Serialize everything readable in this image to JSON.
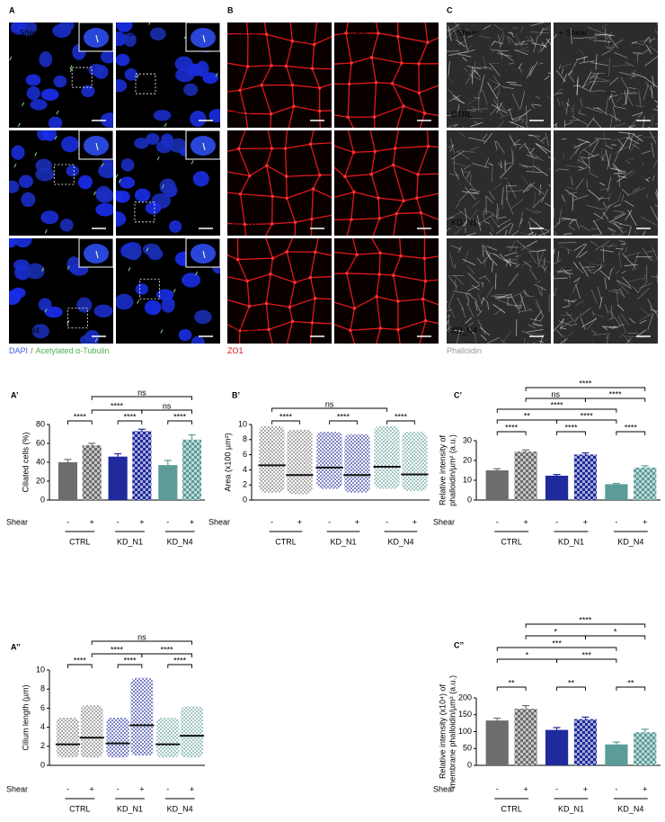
{
  "image_panels": [
    {
      "letter": "A",
      "columns": [
        "- Shear",
        "+ Shear"
      ],
      "rows": [
        "CTRL",
        "KD_N1",
        "KD_N4"
      ],
      "style": "nuclei",
      "caption": [
        {
          "text": "DAPI",
          "color": "#3d5ee0"
        },
        {
          "text": "/",
          "color": "#666666"
        },
        {
          "text": "Acetylated α-Tubulin",
          "color": "#4caf50"
        }
      ]
    },
    {
      "letter": "B",
      "columns": [
        "- Shear",
        "+ Shear"
      ],
      "rows": [
        "CTRL",
        "KD_N1",
        "KD_N4"
      ],
      "style": "junctions",
      "caption": [
        {
          "text": "ZO1",
          "color": "#d01818"
        }
      ]
    },
    {
      "letter": "C",
      "columns": [
        "- Shear",
        "+ Shear"
      ],
      "rows": [
        "CTRL",
        "KD_N1",
        "KD_N4"
      ],
      "style": "actin",
      "caption": [
        {
          "text": "Phalloidin",
          "color": "#999999"
        }
      ]
    }
  ],
  "chart_data": [
    {
      "type": "bar",
      "title": "A’",
      "ylabel": [
        "Ciliated cells (%)"
      ],
      "row_label": "Shear",
      "categories": [
        "CTRL",
        "KD_N1",
        "KD_N4"
      ],
      "colors": [
        "#6d6d6d",
        "#1f2a9c",
        "#5b9c98"
      ],
      "series": [
        {
          "name": "-",
          "values": [
            40,
            46,
            37
          ],
          "errors": [
            3,
            3,
            5
          ]
        },
        {
          "name": "+",
          "values": [
            58,
            73,
            64
          ],
          "errors": [
            2,
            2,
            5
          ]
        }
      ],
      "ylim": [
        0,
        80
      ],
      "yticks": [
        0,
        20,
        40,
        60,
        80
      ],
      "significance": [
        {
          "pair": [
            0,
            1
          ],
          "label": "****"
        },
        {
          "pair": [
            2,
            3
          ],
          "label": "****"
        },
        {
          "pair": [
            4,
            5
          ],
          "label": "****"
        },
        {
          "pair": [
            1,
            3
          ],
          "label": "****"
        },
        {
          "pair": [
            3,
            5
          ],
          "label": "ns"
        },
        {
          "pair": [
            1,
            5
          ],
          "label": "ns"
        }
      ]
    },
    {
      "type": "dot",
      "title": "B’",
      "ylabel": [
        "Area (x100 µm²)"
      ],
      "row_label": "Shear",
      "categories": [
        "CTRL",
        "KD_N1",
        "KD_N4"
      ],
      "colors": [
        "#6d6d6d",
        "#1f2a9c",
        "#5b9c98"
      ],
      "series": [
        {
          "name": "-",
          "values": [
            4.6,
            4.3,
            4.4
          ],
          "min": [
            1,
            1.5,
            1.5
          ],
          "max": [
            9.8,
            9,
            9.8
          ]
        },
        {
          "name": "+",
          "values": [
            3.3,
            3.3,
            3.4
          ],
          "min": [
            0.8,
            1,
            1.2
          ],
          "max": [
            9.3,
            8.7,
            9
          ]
        }
      ],
      "ylim": [
        0,
        10
      ],
      "yticks": [
        0,
        2,
        4,
        6,
        8,
        10
      ],
      "significance": [
        {
          "pair": [
            0,
            1
          ],
          "label": "****"
        },
        {
          "pair": [
            2,
            3
          ],
          "label": "****"
        },
        {
          "pair": [
            4,
            5
          ],
          "label": "****"
        },
        {
          "pair": [
            0,
            4
          ],
          "label": "ns"
        }
      ]
    },
    {
      "type": "bar",
      "title": "C’",
      "ylabel": [
        "Relative intensity of",
        "phalloidin/µm² (a.u.)"
      ],
      "row_label": "Shear",
      "categories": [
        "CTRL",
        "KD_N1",
        "KD_N4"
      ],
      "colors": [
        "#6d6d6d",
        "#1f2a9c",
        "#5b9c98"
      ],
      "series": [
        {
          "name": "-",
          "values": [
            15,
            12.3,
            8
          ],
          "errors": [
            0.8,
            0.6,
            0.4
          ]
        },
        {
          "name": "+",
          "values": [
            24.5,
            23,
            16.4
          ],
          "errors": [
            0.8,
            0.8,
            0.9
          ]
        }
      ],
      "ylim": [
        0,
        30
      ],
      "yticks": [
        0,
        10,
        20,
        30
      ],
      "significance": [
        {
          "pair": [
            0,
            1
          ],
          "label": "****"
        },
        {
          "pair": [
            2,
            3
          ],
          "label": "****"
        },
        {
          "pair": [
            4,
            5
          ],
          "label": "****"
        },
        {
          "pair": [
            0,
            2
          ],
          "label": "**"
        },
        {
          "pair": [
            2,
            4
          ],
          "label": "****"
        },
        {
          "pair": [
            0,
            4
          ],
          "label": "****"
        },
        {
          "pair": [
            1,
            3
          ],
          "label": "ns"
        },
        {
          "pair": [
            3,
            5
          ],
          "label": "****"
        },
        {
          "pair": [
            1,
            5
          ],
          "label": "****"
        }
      ]
    },
    {
      "type": "dot",
      "title": "A’’",
      "ylabel": [
        "Cilium length (µm)"
      ],
      "row_label": "Shear",
      "categories": [
        "CTRL",
        "KD_N1",
        "KD_N4"
      ],
      "colors": [
        "#6d6d6d",
        "#1f2a9c",
        "#5b9c98"
      ],
      "series": [
        {
          "name": "-",
          "values": [
            2.2,
            2.3,
            2.2
          ],
          "min": [
            0.8,
            0.8,
            0.8
          ],
          "max": [
            5,
            5,
            5
          ]
        },
        {
          "name": "+",
          "values": [
            2.9,
            4.2,
            3.1
          ],
          "min": [
            0.8,
            1,
            0.8
          ],
          "max": [
            6.3,
            9.2,
            6.2
          ]
        }
      ],
      "ylim": [
        0,
        10
      ],
      "yticks": [
        0,
        2,
        4,
        6,
        8,
        10
      ],
      "significance": [
        {
          "pair": [
            0,
            1
          ],
          "label": "****"
        },
        {
          "pair": [
            2,
            3
          ],
          "label": "****"
        },
        {
          "pair": [
            4,
            5
          ],
          "label": "****"
        },
        {
          "pair": [
            1,
            3
          ],
          "label": "****"
        },
        {
          "pair": [
            3,
            5
          ],
          "label": "****"
        },
        {
          "pair": [
            1,
            5
          ],
          "label": "ns"
        }
      ]
    },
    {
      "type": "bar",
      "title": "C’’",
      "ylabel": [
        "Relative intensity (x10⁴) of",
        "membrane phalloidin/µm² (a.u.)"
      ],
      "row_label": "Shear",
      "categories": [
        "CTRL",
        "KD_N1",
        "KD_N4"
      ],
      "colors": [
        "#6d6d6d",
        "#1f2a9c",
        "#5b9c98"
      ],
      "series": [
        {
          "name": "-",
          "values": [
            133,
            105,
            62
          ],
          "errors": [
            7,
            7,
            7
          ]
        },
        {
          "name": "+",
          "values": [
            168,
            137,
            98
          ],
          "errors": [
            9,
            6,
            9
          ]
        }
      ],
      "ylim": [
        0,
        200
      ],
      "yticks": [
        0,
        50,
        100,
        150,
        200
      ],
      "significance": [
        {
          "pair": [
            0,
            1
          ],
          "label": "**"
        },
        {
          "pair": [
            2,
            3
          ],
          "label": "**"
        },
        {
          "pair": [
            4,
            5
          ],
          "label": "**"
        },
        {
          "pair": [
            0,
            2
          ],
          "label": "*"
        },
        {
          "pair": [
            2,
            4
          ],
          "label": "***"
        },
        {
          "pair": [
            0,
            4
          ],
          "label": "***"
        },
        {
          "pair": [
            1,
            3
          ],
          "label": "*"
        },
        {
          "pair": [
            3,
            5
          ],
          "label": "*"
        },
        {
          "pair": [
            1,
            5
          ],
          "label": "****"
        }
      ]
    }
  ]
}
